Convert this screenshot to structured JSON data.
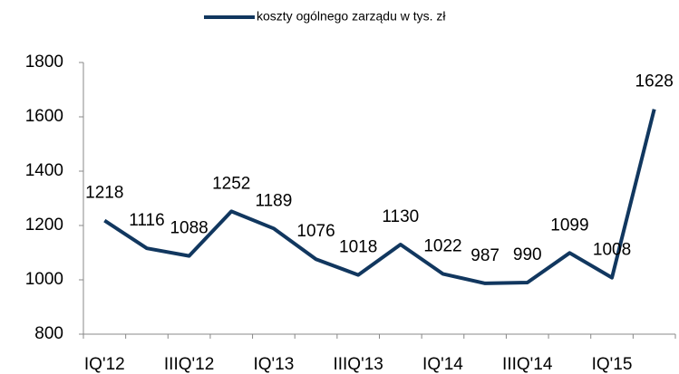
{
  "chart_data": {
    "type": "line",
    "categories": [
      "IQ'12",
      null,
      "IIIQ'12",
      null,
      "IQ'13",
      null,
      "IIIQ'13",
      null,
      "IQ'14",
      null,
      "IIIQ'14",
      null,
      "IQ'15",
      null
    ],
    "series": [
      {
        "name": "koszty ogólnego zarządu w tys. zł",
        "color": "#11375f",
        "values": [
          1218,
          1116,
          1088,
          1252,
          1189,
          1076,
          1018,
          1130,
          1022,
          987,
          990,
          1099,
          1008,
          1628
        ]
      }
    ],
    "ylim": [
      800,
      1800
    ],
    "yticks": [
      800,
      1000,
      1200,
      1400,
      1600,
      1800
    ],
    "legend": "top",
    "grid": false
  }
}
